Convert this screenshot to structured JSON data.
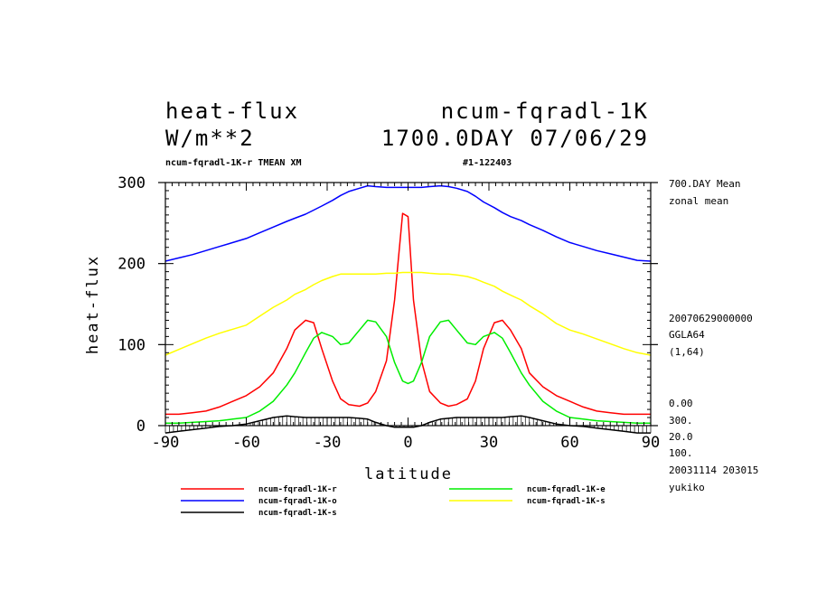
{
  "header": {
    "title_left": "heat-flux",
    "title_right": "ncum-fqradl-1K",
    "units": "W/m**2",
    "day_date": "1700.0DAY 07/06/29",
    "subtitle_left": "ncum-fqradl-1K-r TMEAN XM",
    "subtitle_right": "#1-122403"
  },
  "side_info": {
    "mean": "700.DAY Mean",
    "zonal": "zonal mean",
    "timestamp": "20070629000000",
    "grid": "GGLA64",
    "index": "(1,64)",
    "v1": "0.00",
    "v2": "300.",
    "v3": "20.0",
    "v4": "100.",
    "run": "20031114 203015",
    "user": "yukiko"
  },
  "chart_data": {
    "type": "line",
    "xlabel": "latitude",
    "ylabel": "heat-flux",
    "xlim": [
      -90,
      90
    ],
    "ylim": [
      0,
      300
    ],
    "xticks": [
      -90,
      -60,
      -30,
      0,
      30,
      60,
      90
    ],
    "yticks": [
      0,
      100,
      200,
      300
    ],
    "x": [
      -90,
      -85,
      -80,
      -75,
      -70,
      -65,
      -60,
      -55,
      -50,
      -45,
      -42,
      -38,
      -35,
      -32,
      -28,
      -25,
      -22,
      -18,
      -15,
      -12,
      -8,
      -5,
      -2,
      0,
      2,
      5,
      8,
      12,
      15,
      18,
      22,
      25,
      28,
      32,
      35,
      38,
      42,
      45,
      50,
      55,
      60,
      65,
      70,
      75,
      80,
      85,
      90
    ],
    "series": [
      {
        "name": "ncum-fqradl-1K-r",
        "color": "#ff0000",
        "values": [
          14,
          14,
          16,
          18,
          23,
          30,
          37,
          48,
          65,
          95,
          118,
          130,
          127,
          95,
          55,
          33,
          26,
          24,
          28,
          42,
          80,
          155,
          262,
          258,
          155,
          80,
          42,
          28,
          24,
          26,
          33,
          55,
          95,
          127,
          130,
          118,
          95,
          65,
          48,
          37,
          30,
          23,
          18,
          16,
          14,
          14,
          14
        ]
      },
      {
        "name": "ncum-fqradl-1K-e",
        "color": "#00ee00",
        "values": [
          3,
          3,
          4,
          5,
          6,
          8,
          10,
          18,
          30,
          50,
          65,
          90,
          108,
          115,
          110,
          100,
          102,
          118,
          130,
          128,
          110,
          78,
          55,
          52,
          55,
          78,
          110,
          128,
          130,
          118,
          102,
          100,
          110,
          115,
          108,
          90,
          65,
          50,
          30,
          18,
          10,
          8,
          6,
          5,
          4,
          3,
          3
        ]
      },
      {
        "name": "ncum-fqradl-1K-o",
        "color": "#0000ff",
        "values": [
          203,
          207,
          211,
          216,
          221,
          226,
          231,
          238,
          245,
          252,
          256,
          261,
          266,
          271,
          278,
          284,
          289,
          293,
          296,
          295,
          294,
          294,
          294,
          294,
          294,
          294,
          295,
          296,
          295,
          293,
          289,
          283,
          276,
          269,
          263,
          258,
          253,
          248,
          241,
          233,
          226,
          221,
          216,
          212,
          208,
          204,
          203
        ]
      },
      {
        "name": "ncum-fqradl-1K-s",
        "color": "#ffff00",
        "values": [
          87,
          94,
          101,
          108,
          114,
          119,
          124,
          135,
          146,
          155,
          162,
          168,
          174,
          179,
          184,
          187,
          187,
          187,
          187,
          187,
          188,
          188,
          189,
          189,
          189,
          189,
          188,
          187,
          187,
          186,
          184,
          181,
          177,
          172,
          166,
          161,
          155,
          148,
          138,
          126,
          118,
          113,
          107,
          101,
          95,
          90,
          87
        ]
      },
      {
        "name": "ncum-fqradl-1K-s",
        "color": "#000000",
        "hatch": true,
        "values": [
          -9,
          -7,
          -5,
          -3,
          -1,
          0,
          2,
          6,
          10,
          12,
          11,
          10,
          10,
          10,
          10,
          10,
          10,
          9,
          8,
          4,
          0,
          -2,
          -2,
          -2,
          -2,
          0,
          4,
          8,
          9,
          10,
          10,
          10,
          10,
          10,
          10,
          11,
          12,
          10,
          6,
          2,
          0,
          -1,
          -3,
          -5,
          -7,
          -9,
          -9
        ]
      }
    ]
  }
}
